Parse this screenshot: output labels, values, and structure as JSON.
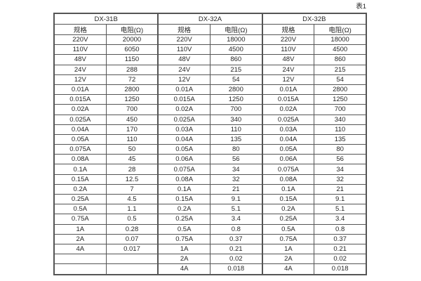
{
  "page": {
    "caption": "表1"
  },
  "colors": {
    "background": "#ffffff",
    "border": "#555555",
    "text": "#262626"
  },
  "table": {
    "groups": [
      {
        "name": "DX-31B",
        "spec_header": "规格",
        "resistance_header": "电阻(Ω)"
      },
      {
        "name": "DX-32A",
        "spec_header": "规格",
        "resistance_header": "电阻(Ω)"
      },
      {
        "name": "DX-32B",
        "spec_header": "规格",
        "resistance_header": "电阻(Ω)"
      }
    ],
    "rows": [
      [
        "220V",
        "20000",
        "220V",
        "18000",
        "220V",
        "18000"
      ],
      [
        "110V",
        "6050",
        "110V",
        "4500",
        "110V",
        "4500"
      ],
      [
        "48V",
        "1150",
        "48V",
        "860",
        "48V",
        "860"
      ],
      [
        "24V",
        "288",
        "24V",
        "215",
        "24V",
        "215"
      ],
      [
        "12V",
        "72",
        "12V",
        "54",
        "12V",
        "54"
      ],
      [
        "0.01A",
        "2800",
        "0.01A",
        "2800",
        "0.01A",
        "2800"
      ],
      [
        "0.015A",
        "1250",
        "0.015A",
        "1250",
        "0.015A",
        "1250"
      ],
      [
        "0.02A",
        "700",
        "0.02A",
        "700",
        "0.02A",
        "700"
      ],
      [
        "0.025A",
        "450",
        "0.025A",
        "340",
        "0.025A",
        "340"
      ],
      [
        "0.04A",
        "170",
        "0.03A",
        "110",
        "0.03A",
        "110"
      ],
      [
        "0.05A",
        "110",
        "0.04A",
        "135",
        "0.04A",
        "135"
      ],
      [
        "0.075A",
        "50",
        "0.05A",
        "80",
        "0.05A",
        "80"
      ],
      [
        "0.08A",
        "45",
        "0.06A",
        "56",
        "0.06A",
        "56"
      ],
      [
        "0.1A",
        "28",
        "0.075A",
        "34",
        "0.075A",
        "34"
      ],
      [
        "0.15A",
        "12.5",
        "0.08A",
        "32",
        "0.08A",
        "32"
      ],
      [
        "0.2A",
        "7",
        "0.1A",
        "21",
        "0.1A",
        "21"
      ],
      [
        "0.25A",
        "4.5",
        "0.15A",
        "9.1",
        "0.15A",
        "9.1"
      ],
      [
        "0.5A",
        "1.1",
        "0.2A",
        "5.1",
        "0.2A",
        "5.1"
      ],
      [
        "0.75A",
        "0.5",
        "0.25A",
        "3.4",
        "0.25A",
        "3.4"
      ],
      [
        "1A",
        "0.28",
        "0.5A",
        "0.8",
        "0.5A",
        "0.8"
      ],
      [
        "2A",
        "0.07",
        "0.75A",
        "0.37",
        "0.75A",
        "0.37"
      ],
      [
        "4A",
        "0.017",
        "1A",
        "0.21",
        "1A",
        "0.21"
      ],
      [
        "",
        "",
        "2A",
        "0.02",
        "2A",
        "0.02"
      ],
      [
        "",
        "",
        "4A",
        "0.018",
        "4A",
        "0.018"
      ]
    ]
  }
}
